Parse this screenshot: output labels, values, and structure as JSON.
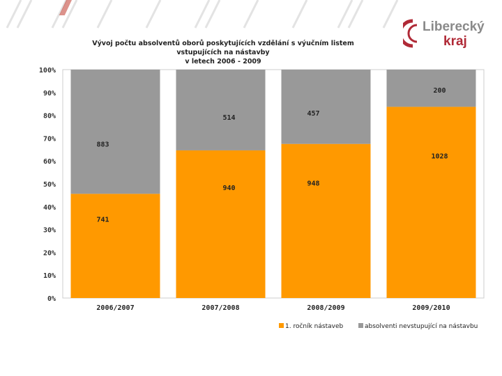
{
  "logo": {
    "text_line1": "Liberecký",
    "text_line2": "kraj",
    "brand_color": "#b02a37"
  },
  "chart_data": {
    "type": "bar",
    "stacked": "percent",
    "title": "Vývoj počtu absolventů oborů poskytujících vzdělání s výučním listem vstupujících na nástavby",
    "subtitle": "v letech 2006 - 2009",
    "categories": [
      "2006/2007",
      "2007/2008",
      "2008/2009",
      "2009/2010"
    ],
    "series": [
      {
        "name": "1. ročník nástaveb",
        "values": [
          741,
          940,
          948,
          1028
        ],
        "color": "#ff9900"
      },
      {
        "name": "absolventi nevstupující na nástavbu",
        "values": [
          883,
          514,
          457,
          200
        ],
        "color": "#999999"
      }
    ],
    "yticks": [
      "0%",
      "10%",
      "20%",
      "30%",
      "40%",
      "50%",
      "60%",
      "70%",
      "80%",
      "90%",
      "100%"
    ],
    "ylim": [
      0,
      100
    ],
    "legend": "bottom-right",
    "grid": false
  }
}
